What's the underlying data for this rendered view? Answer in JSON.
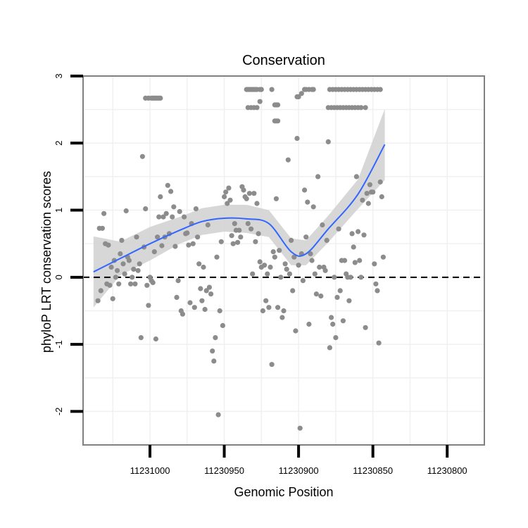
{
  "chart_data": {
    "type": "scatter",
    "title": "Conservation",
    "xlabel": "Genomic Position",
    "ylabel": "phyloP LRT conservation scores",
    "x_reversed": true,
    "xlim": [
      11231045,
      11230775
    ],
    "ylim": [
      -2.5,
      3.0
    ],
    "x_ticks": [
      11231000,
      11230950,
      11230900,
      11230850,
      11230800
    ],
    "x_tick_labels": [
      "11231000",
      "11230950",
      "11230900",
      "11230850",
      "11230800"
    ],
    "y_ticks": [
      -2,
      -1,
      0,
      1,
      2,
      3
    ],
    "y_tick_labels": [
      "-2",
      "-1",
      "0",
      "1",
      "2",
      "3"
    ],
    "grid": true,
    "reference_line": {
      "y": 0,
      "style": "dashed"
    },
    "colors": {
      "points": "#8c8c8c",
      "smooth_line": "#3366ff",
      "confidence_band": "#d3d3d3",
      "reference_line": "#000000",
      "panel_border": "#808080",
      "grid": "#f0f0f0"
    },
    "series": [
      {
        "type": "points",
        "points": [
          [
            11231035,
            -0.35
          ],
          [
            11231034,
            0.73
          ],
          [
            11231033,
            -0.2
          ],
          [
            11231032,
            0.73
          ],
          [
            11231031,
            0.95
          ],
          [
            11231030,
            0.5
          ],
          [
            11231029,
            -0.1
          ],
          [
            11231028,
            0.48
          ],
          [
            11231027,
            -0.12
          ],
          [
            11231026,
            0.15
          ],
          [
            11231025,
            -0.32
          ],
          [
            11231024,
            0.25
          ],
          [
            11231023,
            0.0
          ],
          [
            11231022,
            0.1
          ],
          [
            11231021,
            -0.1
          ],
          [
            11231020,
            0.35
          ],
          [
            11231019,
            0.55
          ],
          [
            11231018,
            0.2
          ],
          [
            11231017,
            0.05
          ],
          [
            11231016,
            0.99
          ],
          [
            11231015,
            0.3
          ],
          [
            11231014,
            0.25
          ],
          [
            11231013,
            -0.1
          ],
          [
            11231012,
            0.0
          ],
          [
            11231011,
            0.12
          ],
          [
            11231010,
            -0.1
          ],
          [
            11231009,
            0.6
          ],
          [
            11231008,
            0.1
          ],
          [
            11231007,
            0.2
          ],
          [
            11231006,
            -0.9
          ],
          [
            11231005,
            1.8
          ],
          [
            11231004,
            0.45
          ],
          [
            11231003,
            1.02
          ],
          [
            11231002,
            -0.12
          ],
          [
            11231001,
            -0.42
          ],
          [
            11231000,
            0.0
          ],
          [
            11230999,
            -0.05
          ],
          [
            11230998,
            -0.08
          ],
          [
            11230997,
            0.38
          ],
          [
            11230996,
            -0.92
          ],
          [
            11230995,
            0.6
          ],
          [
            11230994,
            0.9
          ],
          [
            11230993,
            1.2
          ],
          [
            11230992,
            0.47
          ],
          [
            11230991,
            0.9
          ],
          [
            11230990,
            0.6
          ],
          [
            11230989,
            0.95
          ],
          [
            11230988,
            1.37
          ],
          [
            11230987,
            0.65
          ],
          [
            11230986,
            1.28
          ],
          [
            11230985,
            0.9
          ],
          [
            11230984,
            1.05
          ],
          [
            11230983,
            0.46
          ],
          [
            11230982,
            -0.3
          ],
          [
            11230981,
            -0.05
          ],
          [
            11230980,
            0.98
          ],
          [
            11230979,
            -0.5
          ],
          [
            11230978,
            -0.55
          ],
          [
            11230977,
            0.9
          ],
          [
            11230976,
            0.65
          ],
          [
            11230975,
            0.66
          ],
          [
            11230974,
            0.48
          ],
          [
            11230973,
            -0.38
          ],
          [
            11230972,
            0.8
          ],
          [
            11230971,
            0.5
          ],
          [
            11230970,
            -0.45
          ],
          [
            11230969,
            1.02
          ],
          [
            11230968,
            0.6
          ],
          [
            11230967,
            0.2
          ],
          [
            11230966,
            -0.17
          ],
          [
            11230965,
            -0.35
          ],
          [
            11230964,
            0.15
          ],
          [
            11230963,
            -0.48
          ],
          [
            11230962,
            -0.2
          ],
          [
            11230961,
            0.78
          ],
          [
            11230960,
            -0.15
          ],
          [
            11230959,
            -0.25
          ],
          [
            11230958,
            -1.1
          ],
          [
            11230957,
            -1.25
          ],
          [
            11230956,
            -0.9
          ],
          [
            11230955,
            0.3
          ],
          [
            11230954,
            -2.05
          ],
          [
            11230953,
            -0.5
          ],
          [
            11230952,
            0.53
          ],
          [
            11230951,
            -0.72
          ],
          [
            11230950,
            1.2
          ],
          [
            11230949,
            1.27
          ],
          [
            11230948,
            1.1
          ],
          [
            11230947,
            1.33
          ],
          [
            11230946,
            1.15
          ],
          [
            11230945,
            0.62
          ],
          [
            11230944,
            0.5
          ],
          [
            11230943,
            0.8
          ],
          [
            11230942,
            0.7
          ],
          [
            11230941,
            0.52
          ],
          [
            11230940,
            0.7
          ],
          [
            11230939,
            0.6
          ],
          [
            11230938,
            1.35
          ],
          [
            11230937,
            1.3
          ],
          [
            11230936,
            1.2
          ],
          [
            11230935,
            1.17
          ],
          [
            11230934,
            0.8
          ],
          [
            11230933,
            1.25
          ],
          [
            11230932,
            0.72
          ],
          [
            11230931,
            0.05
          ],
          [
            11230930,
            1.25
          ],
          [
            11230929,
            0.53
          ],
          [
            11230928,
            1.1
          ],
          [
            11230927,
            0.65
          ],
          [
            11230926,
            0.23
          ],
          [
            11230925,
            0.15
          ],
          [
            11230924,
            -0.5
          ],
          [
            11230923,
            0.18
          ],
          [
            11230922,
            -0.35
          ],
          [
            11230921,
            0.05
          ],
          [
            11230920,
            -0.45
          ],
          [
            11230919,
            0.15
          ],
          [
            11230918,
            -1.3
          ],
          [
            11230917,
            0.38
          ],
          [
            11230916,
            0.3
          ],
          [
            11230915,
            1.17
          ],
          [
            11230914,
            -0.45
          ],
          [
            11230913,
            0.4
          ],
          [
            11230912,
            0.0
          ],
          [
            11230911,
            -0.6
          ],
          [
            11230910,
            -0.5
          ],
          [
            11230909,
            0.2
          ],
          [
            11230908,
            0.12
          ],
          [
            11230907,
            1.75
          ],
          [
            11230906,
            0.05
          ],
          [
            11230905,
            0.55
          ],
          [
            11230904,
            -0.2
          ],
          [
            11230903,
            0.3
          ],
          [
            11230902,
            -0.8
          ],
          [
            11230901,
            2.07
          ],
          [
            11230900,
            0.18
          ],
          [
            11230899,
            -2.25
          ],
          [
            11230898,
            0.35
          ],
          [
            11230897,
            -0.05
          ],
          [
            11230896,
            1.3
          ],
          [
            11230895,
            0.6
          ],
          [
            11230894,
            1.12
          ],
          [
            11230893,
            -0.7
          ],
          [
            11230892,
            0.35
          ],
          [
            11230891,
            0.25
          ],
          [
            11230890,
            1.05
          ],
          [
            11230889,
            0.05
          ],
          [
            11230888,
            -0.25
          ],
          [
            11230887,
            1.5
          ],
          [
            11230886,
            0.15
          ],
          [
            11230885,
            -0.28
          ],
          [
            11230884,
            0.78
          ],
          [
            11230883,
            0.15
          ],
          [
            11230882,
            0.1
          ],
          [
            11230881,
            0.55
          ],
          [
            11230880,
            2.02
          ],
          [
            11230879,
            -1.05
          ],
          [
            11230878,
            -0.6
          ],
          [
            11230877,
            -0.7
          ],
          [
            11230876,
            0.0
          ],
          [
            11230875,
            -0.9
          ],
          [
            11230874,
            -0.3
          ],
          [
            11230873,
            0.72
          ],
          [
            11230872,
            -0.2
          ],
          [
            11230871,
            0.25
          ],
          [
            11230870,
            -0.65
          ],
          [
            11230869,
            0.25
          ],
          [
            11230868,
            0.05
          ],
          [
            11230867,
            0.0
          ],
          [
            11230866,
            -0.35
          ],
          [
            11230865,
            0.0
          ],
          [
            11230864,
            0.65
          ],
          [
            11230863,
            0.45
          ],
          [
            11230862,
            0.22
          ],
          [
            11230861,
            1.5
          ],
          [
            11230860,
            0.68
          ],
          [
            11230859,
            0.25
          ],
          [
            11230858,
            0.0
          ],
          [
            11230857,
            1.15
          ],
          [
            11230856,
            0.63
          ],
          [
            11230855,
            -0.75
          ],
          [
            11230854,
            1.25
          ],
          [
            11230853,
            1.1
          ],
          [
            11230852,
            1.38
          ],
          [
            11230851,
            1.27
          ],
          [
            11230850,
            1.27
          ],
          [
            11230849,
            0.2
          ],
          [
            11230848,
            -0.1
          ],
          [
            11230847,
            -0.2
          ],
          [
            11230846,
            -0.98
          ],
          [
            11230845,
            1.42
          ],
          [
            11230844,
            1.2
          ],
          [
            11230843,
            0.3
          ]
        ]
      },
      {
        "type": "points",
        "points": [
          [
            11231003,
            2.67
          ],
          [
            11231001,
            2.67
          ],
          [
            11230999,
            2.67
          ],
          [
            11230998,
            2.67
          ],
          [
            11230997,
            2.67
          ],
          [
            11230996,
            2.67
          ],
          [
            11230995,
            2.67
          ],
          [
            11230994,
            2.67
          ],
          [
            11230993,
            2.67
          ],
          [
            11230935,
            2.8
          ],
          [
            11230934,
            2.8
          ],
          [
            11230933,
            2.8
          ],
          [
            11230932,
            2.8
          ],
          [
            11230931,
            2.8
          ],
          [
            11230930,
            2.8
          ],
          [
            11230929,
            2.8
          ],
          [
            11230928,
            2.8
          ],
          [
            11230926,
            2.8
          ],
          [
            11230925,
            2.8
          ],
          [
            11230934,
            2.53
          ],
          [
            11230932,
            2.53
          ],
          [
            11230930,
            2.53
          ],
          [
            11230928,
            2.53
          ],
          [
            11230926,
            2.62
          ],
          [
            11230918,
            2.8
          ],
          [
            11230916,
            2.57
          ],
          [
            11230915,
            2.57
          ],
          [
            11230914,
            2.57
          ],
          [
            11230916,
            2.33
          ],
          [
            11230915,
            2.33
          ],
          [
            11230914,
            2.33
          ],
          [
            11230901,
            2.69
          ],
          [
            11230900,
            2.69
          ],
          [
            11230898,
            2.74
          ],
          [
            11230896,
            2.8
          ],
          [
            11230895,
            2.8
          ],
          [
            11230893,
            2.8
          ],
          [
            11230891,
            2.8
          ],
          [
            11230890,
            2.8
          ],
          [
            11230879,
            2.8
          ],
          [
            11230877,
            2.8
          ],
          [
            11230875,
            2.8
          ],
          [
            11230873,
            2.8
          ],
          [
            11230871,
            2.8
          ],
          [
            11230869,
            2.8
          ],
          [
            11230867,
            2.8
          ],
          [
            11230865,
            2.8
          ],
          [
            11230863,
            2.8
          ],
          [
            11230861,
            2.8
          ],
          [
            11230859,
            2.8
          ],
          [
            11230857,
            2.8
          ],
          [
            11230855,
            2.8
          ],
          [
            11230853,
            2.8
          ],
          [
            11230851,
            2.8
          ],
          [
            11230849,
            2.8
          ],
          [
            11230847,
            2.8
          ],
          [
            11230845,
            2.8
          ],
          [
            11230880,
            2.53
          ],
          [
            11230878,
            2.53
          ],
          [
            11230876,
            2.53
          ],
          [
            11230874,
            2.53
          ],
          [
            11230872,
            2.53
          ],
          [
            11230870,
            2.53
          ],
          [
            11230868,
            2.53
          ],
          [
            11230866,
            2.53
          ],
          [
            11230864,
            2.53
          ],
          [
            11230862,
            2.53
          ],
          [
            11230860,
            2.53
          ],
          [
            11230858,
            2.53
          ],
          [
            11230855,
            2.53
          ]
        ]
      },
      {
        "type": "smooth",
        "x": [
          11231038,
          11231020,
          11231000,
          11230980,
          11230965,
          11230950,
          11230935,
          11230920,
          11230905,
          11230895,
          11230880,
          11230860,
          11230842
        ],
        "y": [
          0.08,
          0.28,
          0.5,
          0.7,
          0.83,
          0.88,
          0.87,
          0.8,
          0.38,
          0.35,
          0.72,
          1.24,
          1.98
        ]
      },
      {
        "type": "confidence_band",
        "x": [
          11231038,
          11231020,
          11231000,
          11230980,
          11230965,
          11230950,
          11230935,
          11230920,
          11230905,
          11230895,
          11230880,
          11230860,
          11230842
        ],
        "lower": [
          -0.45,
          0.03,
          0.25,
          0.5,
          0.63,
          0.68,
          0.66,
          0.6,
          0.18,
          0.18,
          0.52,
          1.02,
          1.45
        ],
        "upper": [
          0.61,
          0.53,
          0.75,
          0.9,
          1.03,
          1.08,
          1.08,
          1.0,
          0.58,
          0.55,
          0.92,
          1.46,
          2.51
        ]
      }
    ]
  }
}
